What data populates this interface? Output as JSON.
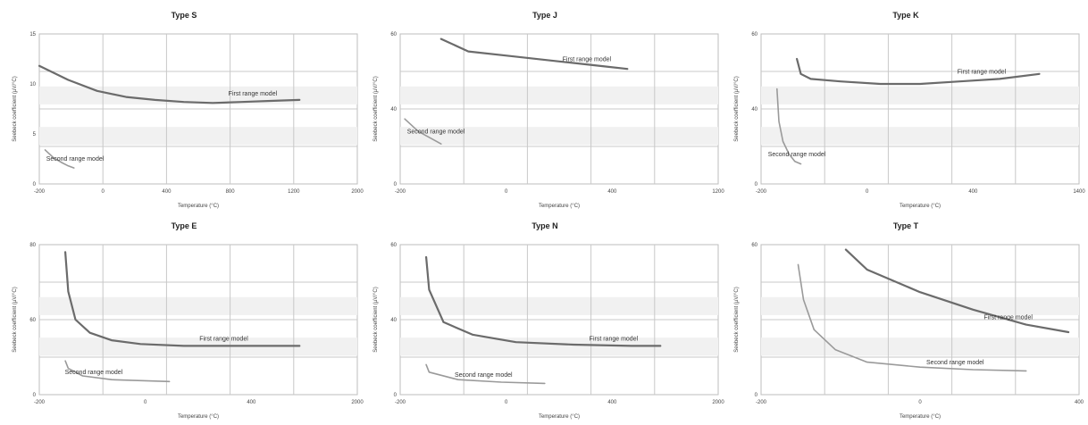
{
  "chart_data": [
    {
      "type": "line",
      "title": "Type S",
      "xlabel": "Temperature (°C)",
      "ylabel": "Seebeck coefficient (µV/°C)",
      "xlim": [
        -200,
        2000
      ],
      "ylim": [
        0,
        15
      ],
      "xticks": [
        "-200",
        "0",
        "400",
        "800",
        "1200",
        "2000"
      ],
      "yticks": [
        "15",
        "10",
        "5",
        "0"
      ],
      "grid": true,
      "series": [
        {
          "name": "First range model",
          "x": [
            -200,
            0,
            200,
            400,
            600,
            800,
            1000,
            1200,
            1400,
            1600
          ],
          "y": [
            11.8,
            10.4,
            9.3,
            8.7,
            8.4,
            8.2,
            8.1,
            8.2,
            8.3,
            8.4
          ]
        },
        {
          "name": "Second range model",
          "x": [
            -160,
            -100,
            -40,
            0,
            40
          ],
          "y": [
            3.4,
            2.6,
            2.1,
            1.8,
            1.6
          ]
        }
      ],
      "annotations": [
        "First range model",
        "Second range model"
      ]
    },
    {
      "type": "line",
      "title": "Type J",
      "xlabel": "Temperature (°C)",
      "ylabel": "Seebeck coefficient (µV/°C)",
      "xlim": [
        -200,
        1200
      ],
      "ylim": [
        0,
        60
      ],
      "xticks": [
        "-200",
        "0",
        "400",
        "1200"
      ],
      "yticks": [
        "60",
        "40",
        "0"
      ],
      "grid": true,
      "series": [
        {
          "name": "First range model",
          "x": [
            -20,
            100,
            300,
            500,
            700,
            800
          ],
          "y": [
            58,
            53,
            51,
            49,
            47,
            46
          ]
        },
        {
          "name": "Second range model",
          "x": [
            -180,
            -120,
            -60,
            -20
          ],
          "y": [
            26,
            21,
            18,
            16
          ]
        }
      ],
      "annotations": [
        "First range model",
        "Second range model"
      ]
    },
    {
      "type": "line",
      "title": "Type K",
      "xlabel": "Temperature (°C)",
      "ylabel": "Seebeck coefficient (µV/°C)",
      "xlim": [
        -200,
        1400
      ],
      "ylim": [
        0,
        60
      ],
      "xticks": [
        "-200",
        "0",
        "400",
        "1400"
      ],
      "yticks": [
        "60",
        "40",
        "0"
      ],
      "grid": true,
      "series": [
        {
          "name": "First range model",
          "x": [
            -20,
            0,
            50,
            200,
            400,
            600,
            800,
            1000,
            1200
          ],
          "y": [
            50,
            44,
            42,
            41,
            40,
            40,
            41,
            42,
            44
          ]
        },
        {
          "name": "Second range model",
          "x": [
            -120,
            -110,
            -90,
            -60,
            -30,
            0
          ],
          "y": [
            38,
            25,
            17,
            12,
            9,
            8
          ]
        }
      ],
      "annotations": [
        "First range model",
        "Second range model"
      ]
    },
    {
      "type": "line",
      "title": "Type E",
      "xlabel": "Temperature (°C)",
      "ylabel": "Seebeck coefficient (µV/°C)",
      "xlim": [
        -200,
        2000
      ],
      "ylim": [
        0,
        80
      ],
      "xticks": [
        "-200",
        "0",
        "400",
        "2000"
      ],
      "yticks": [
        "80",
        "60",
        "0"
      ],
      "grid": true,
      "series": [
        {
          "name": "First range model",
          "x": [
            -20,
            0,
            50,
            150,
            300,
            500,
            800,
            1200,
            1600
          ],
          "y": [
            76,
            55,
            40,
            33,
            29,
            27,
            26,
            26,
            26
          ]
        },
        {
          "name": "Second range model",
          "x": [
            -20,
            0,
            100,
            300,
            700
          ],
          "y": [
            18,
            14,
            10,
            8,
            7
          ]
        }
      ],
      "annotations": [
        "First range model",
        "Second range model"
      ]
    },
    {
      "type": "line",
      "title": "Type N",
      "xlabel": "Temperature (°C)",
      "ylabel": "Seebeck coefficient (µV/°C)",
      "xlim": [
        -200,
        2000
      ],
      "ylim": [
        0,
        60
      ],
      "xticks": [
        "-200",
        "0",
        "400",
        "2000"
      ],
      "yticks": [
        "60",
        "40",
        "0"
      ],
      "grid": true,
      "series": [
        {
          "name": "First range model",
          "x": [
            -20,
            0,
            100,
            300,
            600,
            1000,
            1400,
            1600
          ],
          "y": [
            55,
            42,
            29,
            24,
            21,
            20,
            19.5,
            19.5
          ]
        },
        {
          "name": "Second range model",
          "x": [
            -20,
            0,
            200,
            500,
            800
          ],
          "y": [
            12,
            9,
            6,
            5,
            4.5
          ]
        }
      ],
      "annotations": [
        "First range model",
        "Second range model"
      ]
    },
    {
      "type": "line",
      "title": "Type T",
      "xlabel": "Temperature (°C)",
      "ylabel": "Seebeck coefficient (µV/°C)",
      "xlim": [
        -200,
        400
      ],
      "ylim": [
        0,
        60
      ],
      "xticks": [
        "-200",
        "0",
        "400"
      ],
      "yticks": [
        "60",
        "0"
      ],
      "grid": true,
      "series": [
        {
          "name": "First range model",
          "x": [
            -40,
            0,
            100,
            200,
            300,
            380
          ],
          "y": [
            58,
            50,
            41,
            34,
            28,
            25
          ]
        },
        {
          "name": "Second range model",
          "x": [
            -130,
            -120,
            -100,
            -60,
            0,
            100,
            200,
            300
          ],
          "y": [
            52,
            38,
            26,
            18,
            13,
            11,
            10,
            9.5
          ]
        }
      ],
      "annotations": [
        "First range model",
        "Second range model"
      ]
    }
  ]
}
